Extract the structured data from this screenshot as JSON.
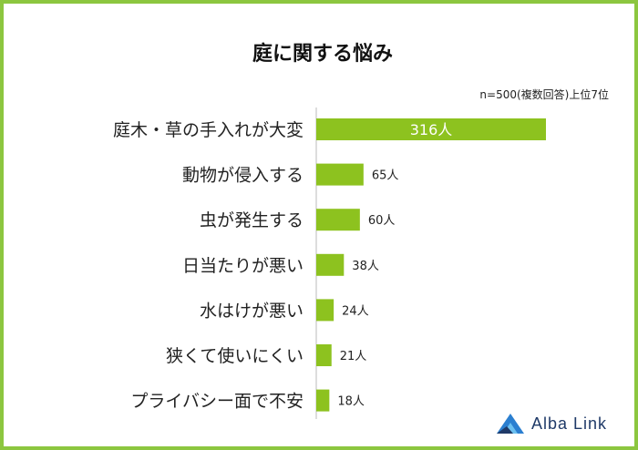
{
  "title": "庭に関する悩み",
  "note": "n=500(複数回答)上位7位",
  "brand": "Alba Link",
  "colors": {
    "bar": "#8dc21f",
    "border": "#8cc63f",
    "logo": "#1f3a68"
  },
  "chart_data": {
    "type": "bar",
    "orientation": "horizontal",
    "categories": [
      "庭木・草の手入れが大変",
      "動物が侵入する",
      "虫が発生する",
      "日当たりが悪い",
      "水はけが悪い",
      "狭くて使いにくい",
      "プライバシー面で不安"
    ],
    "values": [
      316,
      65,
      60,
      38,
      24,
      21,
      18
    ],
    "value_labels": [
      "316人",
      "65人",
      "60人",
      "38人",
      "24人",
      "21人",
      "18人"
    ],
    "grid": false,
    "legend": "none"
  }
}
